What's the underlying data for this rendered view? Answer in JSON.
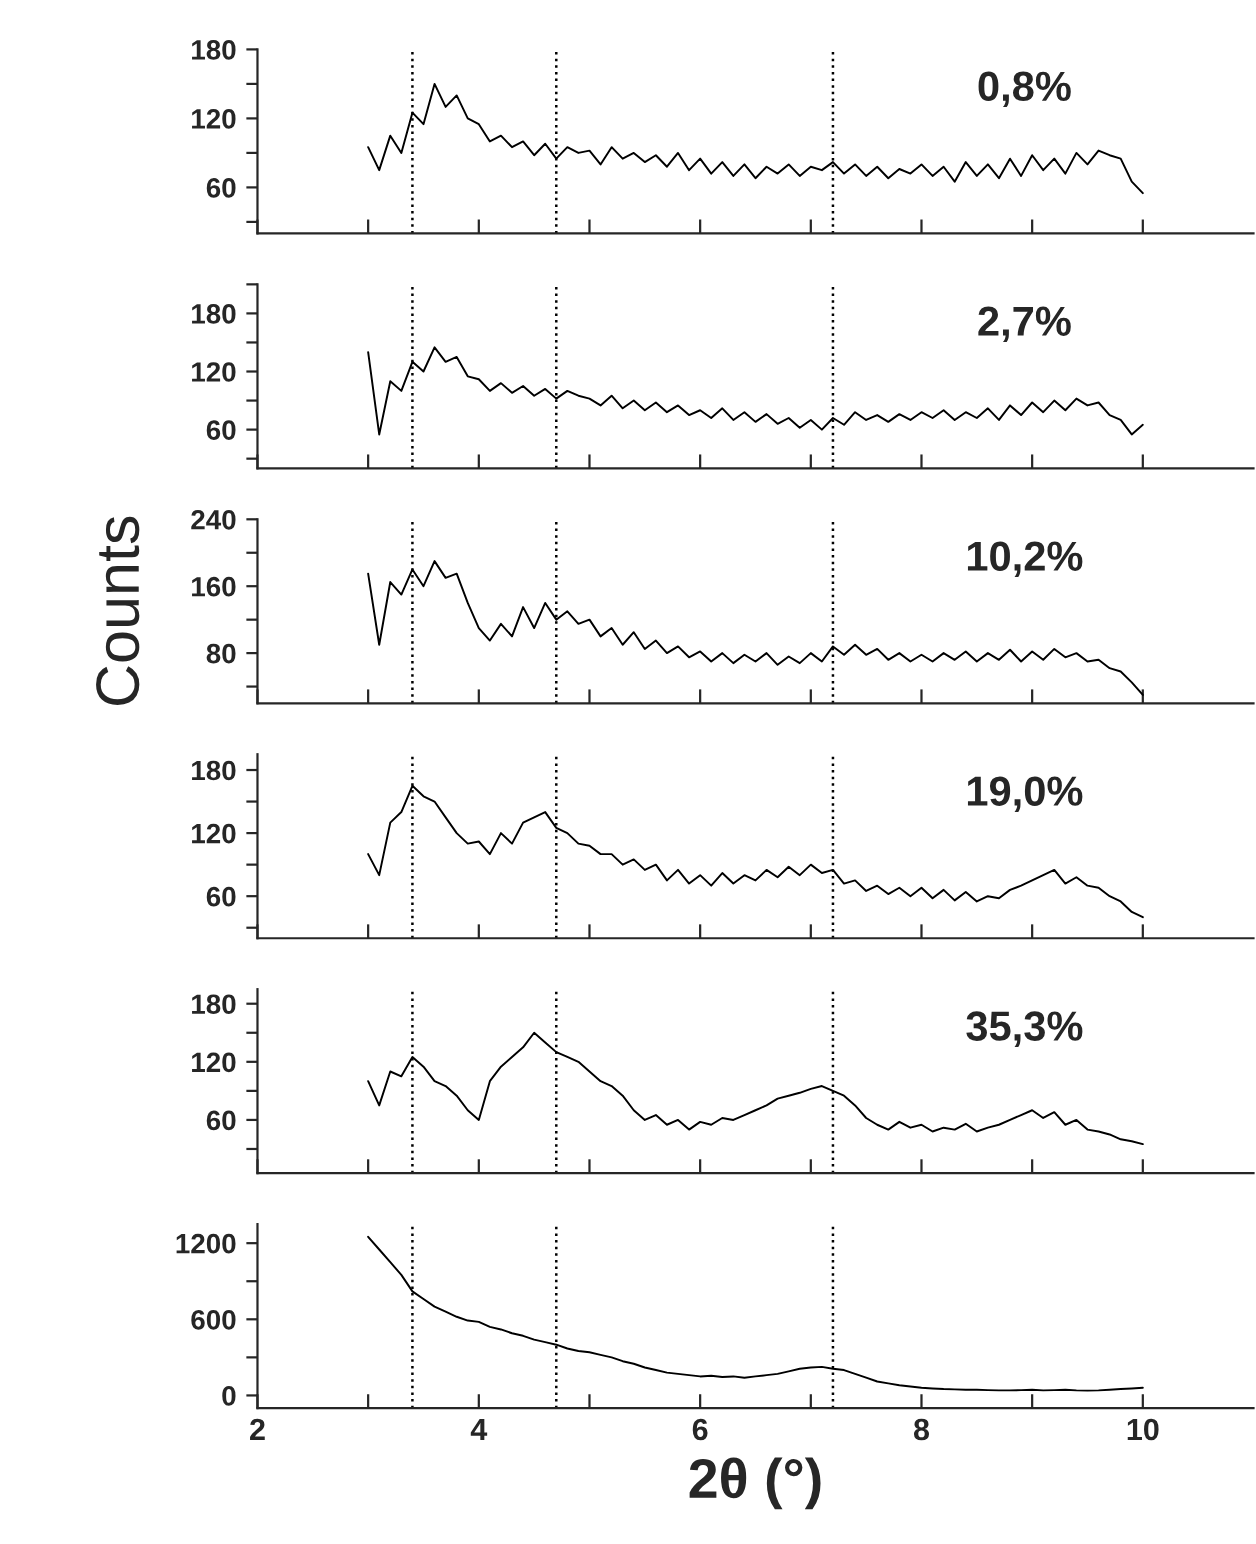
{
  "chart_data": [
    {
      "type": "line",
      "annotations": [
        "0,8%"
      ],
      "xlim": [
        2,
        11
      ],
      "xticks": [
        2,
        {
          "value": 3,
          "label": null
        },
        4,
        {
          "value": 5,
          "label": null
        },
        6,
        {
          "value": 7,
          "label": null
        },
        8,
        {
          "value": 9,
          "label": null
        },
        10
      ],
      "ylim": [
        20,
        180
      ],
      "yticks": [
        {
          "value": 30,
          "label": null
        },
        60,
        {
          "value": 90,
          "label": null
        },
        120,
        {
          "value": 150,
          "label": null
        },
        180
      ],
      "tick_labels": "y",
      "ref_lines": [
        {
          "axis": "x",
          "value": 3.4,
          "color": "#000000",
          "line_style": "dotted"
        },
        {
          "axis": "x",
          "value": 4.7,
          "color": "#000000",
          "line_style": "dotted"
        },
        {
          "axis": "x",
          "value": 7.2,
          "color": "#000000",
          "line_style": "dotted"
        }
      ],
      "x": [
        3.0,
        3.1,
        3.2,
        3.3,
        3.4,
        3.5,
        3.6,
        3.7,
        3.8,
        3.9,
        4.0,
        4.1,
        4.2,
        4.3,
        4.4,
        4.5,
        4.6,
        4.7,
        4.8,
        4.9,
        5.0,
        5.1,
        5.2,
        5.3,
        5.4,
        5.5,
        5.6,
        5.7,
        5.8,
        5.9,
        6.0,
        6.1,
        6.2,
        6.3,
        6.4,
        6.5,
        6.6,
        6.7,
        6.8,
        6.9,
        7.0,
        7.1,
        7.2,
        7.3,
        7.4,
        7.5,
        7.6,
        7.7,
        7.8,
        7.9,
        8.0,
        8.1,
        8.2,
        8.3,
        8.4,
        8.5,
        8.6,
        8.7,
        8.8,
        8.9,
        9.0,
        9.1,
        9.2,
        9.3,
        9.4,
        9.5,
        9.6,
        9.7,
        9.8,
        9.9,
        10.0
      ],
      "series": [
        {
          "color": "#000000",
          "values": [
            95,
            75,
            105,
            90,
            125,
            115,
            150,
            130,
            140,
            120,
            115,
            100,
            105,
            95,
            100,
            88,
            98,
            85,
            95,
            90,
            92,
            80,
            95,
            85,
            90,
            82,
            88,
            78,
            90,
            75,
            85,
            72,
            82,
            70,
            80,
            68,
            78,
            72,
            80,
            70,
            78,
            75,
            82,
            72,
            80,
            70,
            78,
            68,
            76,
            72,
            80,
            70,
            78,
            65,
            82,
            70,
            80,
            68,
            85,
            70,
            88,
            75,
            85,
            72,
            90,
            80,
            92,
            88,
            85,
            65,
            55
          ]
        }
      ]
    },
    {
      "type": "line",
      "annotations": [
        "2,7%"
      ],
      "xlim": [
        2,
        11
      ],
      "xticks": [
        2,
        {
          "value": 3,
          "label": null
        },
        4,
        {
          "value": 5,
          "label": null
        },
        6,
        {
          "value": 7,
          "label": null
        },
        8,
        {
          "value": 9,
          "label": null
        },
        10
      ],
      "ylim": [
        20,
        210
      ],
      "yticks": [
        {
          "value": 30,
          "label": null
        },
        60,
        {
          "value": 90,
          "label": null
        },
        120,
        {
          "value": 150,
          "label": null
        },
        180,
        {
          "value": 210,
          "label": null
        }
      ],
      "tick_labels": "y",
      "ref_lines": [
        {
          "axis": "x",
          "value": 3.4,
          "color": "#000000",
          "line_style": "dotted"
        },
        {
          "axis": "x",
          "value": 4.7,
          "color": "#000000",
          "line_style": "dotted"
        },
        {
          "axis": "x",
          "value": 7.2,
          "color": "#000000",
          "line_style": "dotted"
        }
      ],
      "x": [
        3.0,
        3.1,
        3.2,
        3.3,
        3.4,
        3.5,
        3.6,
        3.7,
        3.8,
        3.9,
        4.0,
        4.1,
        4.2,
        4.3,
        4.4,
        4.5,
        4.6,
        4.7,
        4.8,
        4.9,
        5.0,
        5.1,
        5.2,
        5.3,
        5.4,
        5.5,
        5.6,
        5.7,
        5.8,
        5.9,
        6.0,
        6.1,
        6.2,
        6.3,
        6.4,
        6.5,
        6.6,
        6.7,
        6.8,
        6.9,
        7.0,
        7.1,
        7.2,
        7.3,
        7.4,
        7.5,
        7.6,
        7.7,
        7.8,
        7.9,
        8.0,
        8.1,
        8.2,
        8.3,
        8.4,
        8.5,
        8.6,
        8.7,
        8.8,
        8.9,
        9.0,
        9.1,
        9.2,
        9.3,
        9.4,
        9.5,
        9.6,
        9.7,
        9.8,
        9.9,
        10.0
      ],
      "series": [
        {
          "color": "#000000",
          "values": [
            140,
            55,
            110,
            100,
            130,
            120,
            145,
            130,
            135,
            115,
            112,
            100,
            108,
            98,
            105,
            95,
            102,
            92,
            100,
            95,
            92,
            85,
            95,
            82,
            90,
            80,
            88,
            78,
            85,
            75,
            80,
            72,
            82,
            70,
            78,
            68,
            76,
            66,
            72,
            62,
            70,
            60,
            72,
            65,
            78,
            70,
            75,
            68,
            76,
            70,
            78,
            72,
            80,
            70,
            78,
            72,
            82,
            70,
            85,
            75,
            88,
            78,
            90,
            80,
            92,
            85,
            88,
            75,
            70,
            55,
            65
          ]
        }
      ]
    },
    {
      "type": "line",
      "annotations": [
        "10,2%"
      ],
      "ylabel": "Counts",
      "xlim": [
        2,
        11
      ],
      "xticks": [
        2,
        {
          "value": 3,
          "label": null
        },
        4,
        {
          "value": 5,
          "label": null
        },
        6,
        {
          "value": 7,
          "label": null
        },
        8,
        {
          "value": 9,
          "label": null
        },
        10
      ],
      "ylim": [
        20,
        240
      ],
      "yticks": [
        {
          "value": 40,
          "label": null
        },
        80,
        {
          "value": 120,
          "label": null
        },
        160,
        {
          "value": 200,
          "label": null
        },
        240
      ],
      "tick_labels": "y",
      "ref_lines": [
        {
          "axis": "x",
          "value": 3.4,
          "color": "#000000",
          "line_style": "dotted"
        },
        {
          "axis": "x",
          "value": 4.7,
          "color": "#000000",
          "line_style": "dotted"
        },
        {
          "axis": "x",
          "value": 7.2,
          "color": "#000000",
          "line_style": "dotted"
        }
      ],
      "x": [
        3.0,
        3.1,
        3.2,
        3.3,
        3.4,
        3.5,
        3.6,
        3.7,
        3.8,
        3.9,
        4.0,
        4.1,
        4.2,
        4.3,
        4.4,
        4.5,
        4.6,
        4.7,
        4.8,
        4.9,
        5.0,
        5.1,
        5.2,
        5.3,
        5.4,
        5.5,
        5.6,
        5.7,
        5.8,
        5.9,
        6.0,
        6.1,
        6.2,
        6.3,
        6.4,
        6.5,
        6.6,
        6.7,
        6.8,
        6.9,
        7.0,
        7.1,
        7.2,
        7.3,
        7.4,
        7.5,
        7.6,
        7.7,
        7.8,
        7.9,
        8.0,
        8.1,
        8.2,
        8.3,
        8.4,
        8.5,
        8.6,
        8.7,
        8.8,
        8.9,
        9.0,
        9.1,
        9.2,
        9.3,
        9.4,
        9.5,
        9.6,
        9.7,
        9.8,
        9.9,
        10.0
      ],
      "series": [
        {
          "color": "#000000",
          "values": [
            175,
            90,
            165,
            150,
            180,
            160,
            190,
            170,
            175,
            140,
            110,
            95,
            115,
            100,
            135,
            110,
            140,
            120,
            130,
            115,
            120,
            100,
            110,
            90,
            105,
            85,
            95,
            80,
            88,
            75,
            82,
            70,
            80,
            68,
            78,
            70,
            80,
            66,
            76,
            68,
            80,
            70,
            88,
            78,
            90,
            78,
            85,
            72,
            80,
            70,
            78,
            70,
            80,
            72,
            82,
            70,
            80,
            72,
            84,
            70,
            82,
            72,
            85,
            75,
            80,
            70,
            72,
            62,
            58,
            45,
            30
          ]
        }
      ]
    },
    {
      "type": "line",
      "annotations": [
        "19,0%"
      ],
      "xlim": [
        2,
        11
      ],
      "xticks": [
        2,
        {
          "value": 3,
          "label": null
        },
        4,
        {
          "value": 5,
          "label": null
        },
        6,
        {
          "value": 7,
          "label": null
        },
        8,
        {
          "value": 9,
          "label": null
        },
        10
      ],
      "ylim": [
        20,
        195
      ],
      "yticks": [
        {
          "value": 30,
          "label": null
        },
        60,
        {
          "value": 90,
          "label": null
        },
        120,
        {
          "value": 150,
          "label": null
        },
        180
      ],
      "tick_labels": "y",
      "ref_lines": [
        {
          "axis": "x",
          "value": 3.4,
          "color": "#000000",
          "line_style": "dotted"
        },
        {
          "axis": "x",
          "value": 4.7,
          "color": "#000000",
          "line_style": "dotted"
        },
        {
          "axis": "x",
          "value": 7.2,
          "color": "#000000",
          "line_style": "dotted"
        }
      ],
      "x": [
        3.0,
        3.1,
        3.2,
        3.3,
        3.4,
        3.5,
        3.6,
        3.7,
        3.8,
        3.9,
        4.0,
        4.1,
        4.2,
        4.3,
        4.4,
        4.5,
        4.6,
        4.7,
        4.8,
        4.9,
        5.0,
        5.1,
        5.2,
        5.3,
        5.4,
        5.5,
        5.6,
        5.7,
        5.8,
        5.9,
        6.0,
        6.1,
        6.2,
        6.3,
        6.4,
        6.5,
        6.6,
        6.7,
        6.8,
        6.9,
        7.0,
        7.1,
        7.2,
        7.3,
        7.4,
        7.5,
        7.6,
        7.7,
        7.8,
        7.9,
        8.0,
        8.1,
        8.2,
        8.3,
        8.4,
        8.5,
        8.6,
        8.7,
        8.8,
        8.9,
        9.0,
        9.1,
        9.2,
        9.3,
        9.4,
        9.5,
        9.6,
        9.7,
        9.8,
        9.9,
        10.0
      ],
      "series": [
        {
          "color": "#000000",
          "values": [
            100,
            80,
            130,
            140,
            165,
            155,
            150,
            135,
            120,
            110,
            112,
            100,
            120,
            110,
            130,
            135,
            140,
            125,
            120,
            110,
            108,
            100,
            100,
            90,
            95,
            85,
            90,
            75,
            85,
            72,
            80,
            70,
            82,
            72,
            80,
            75,
            85,
            78,
            88,
            80,
            90,
            82,
            85,
            72,
            75,
            65,
            70,
            62,
            68,
            60,
            68,
            58,
            66,
            56,
            64,
            55,
            60,
            58,
            66,
            70,
            75,
            80,
            85,
            72,
            78,
            70,
            68,
            60,
            55,
            45,
            40
          ]
        }
      ]
    },
    {
      "type": "line",
      "annotations": [
        "35,3%"
      ],
      "xlim": [
        2,
        11
      ],
      "xticks": [
        2,
        {
          "value": 3,
          "label": null
        },
        4,
        {
          "value": 5,
          "label": null
        },
        6,
        {
          "value": 7,
          "label": null
        },
        8,
        {
          "value": 9,
          "label": null
        },
        10
      ],
      "ylim": [
        5,
        195
      ],
      "yticks": [
        {
          "value": 30,
          "label": null
        },
        60,
        {
          "value": 90,
          "label": null
        },
        120,
        {
          "value": 150,
          "label": null
        },
        180
      ],
      "tick_labels": "y",
      "ref_lines": [
        {
          "axis": "x",
          "value": 3.4,
          "color": "#000000",
          "line_style": "dotted"
        },
        {
          "axis": "x",
          "value": 4.7,
          "color": "#000000",
          "line_style": "dotted"
        },
        {
          "axis": "x",
          "value": 7.2,
          "color": "#000000",
          "line_style": "dotted"
        }
      ],
      "x": [
        3.0,
        3.1,
        3.2,
        3.3,
        3.4,
        3.5,
        3.6,
        3.7,
        3.8,
        3.9,
        4.0,
        4.1,
        4.2,
        4.3,
        4.4,
        4.5,
        4.6,
        4.7,
        4.8,
        4.9,
        5.0,
        5.1,
        5.2,
        5.3,
        5.4,
        5.5,
        5.6,
        5.7,
        5.8,
        5.9,
        6.0,
        6.1,
        6.2,
        6.3,
        6.4,
        6.5,
        6.6,
        6.7,
        6.8,
        6.9,
        7.0,
        7.1,
        7.2,
        7.3,
        7.4,
        7.5,
        7.6,
        7.7,
        7.8,
        7.9,
        8.0,
        8.1,
        8.2,
        8.3,
        8.4,
        8.5,
        8.6,
        8.7,
        8.8,
        8.9,
        9.0,
        9.1,
        9.2,
        9.3,
        9.4,
        9.5,
        9.6,
        9.7,
        9.8,
        9.9,
        10.0
      ],
      "series": [
        {
          "color": "#000000",
          "values": [
            100,
            75,
            110,
            105,
            125,
            115,
            100,
            95,
            85,
            70,
            60,
            100,
            115,
            125,
            135,
            150,
            140,
            130,
            125,
            120,
            110,
            100,
            95,
            85,
            70,
            60,
            65,
            55,
            60,
            50,
            58,
            55,
            62,
            60,
            65,
            70,
            75,
            82,
            85,
            88,
            92,
            95,
            90,
            85,
            75,
            62,
            55,
            50,
            58,
            52,
            55,
            48,
            52,
            50,
            56,
            48,
            52,
            55,
            60,
            65,
            70,
            62,
            68,
            55,
            60,
            50,
            48,
            45,
            40,
            38,
            35
          ]
        }
      ]
    },
    {
      "type": "line",
      "xlabel": "2θ (°)",
      "xlim": [
        2,
        11
      ],
      "xticks": [
        2,
        {
          "value": 3,
          "label": null
        },
        4,
        {
          "value": 5,
          "label": null
        },
        6,
        {
          "value": 7,
          "label": null
        },
        8,
        {
          "value": 9,
          "label": null
        },
        10
      ],
      "ylim": [
        -100,
        1350
      ],
      "yticks": [
        0,
        {
          "value": 300,
          "label": null
        },
        600,
        {
          "value": 900,
          "label": null
        },
        1200
      ],
      "ref_lines": [
        {
          "axis": "x",
          "value": 3.4,
          "color": "#000000",
          "line_style": "dotted"
        },
        {
          "axis": "x",
          "value": 4.7,
          "color": "#000000",
          "line_style": "dotted"
        },
        {
          "axis": "x",
          "value": 7.2,
          "color": "#000000",
          "line_style": "dotted"
        }
      ],
      "x": [
        3.0,
        3.1,
        3.2,
        3.3,
        3.4,
        3.5,
        3.6,
        3.7,
        3.8,
        3.9,
        4.0,
        4.1,
        4.2,
        4.3,
        4.4,
        4.5,
        4.6,
        4.7,
        4.8,
        4.9,
        5.0,
        5.1,
        5.2,
        5.3,
        5.4,
        5.5,
        5.6,
        5.7,
        5.8,
        5.9,
        6.0,
        6.1,
        6.2,
        6.3,
        6.4,
        6.5,
        6.6,
        6.7,
        6.8,
        6.9,
        7.0,
        7.1,
        7.2,
        7.3,
        7.4,
        7.5,
        7.6,
        7.7,
        7.8,
        7.9,
        8.0,
        8.1,
        8.2,
        8.3,
        8.4,
        8.5,
        8.6,
        8.7,
        8.8,
        8.9,
        9.0,
        9.1,
        9.2,
        9.3,
        9.4,
        9.5,
        9.6,
        9.7,
        9.8,
        9.9,
        10.0
      ],
      "series": [
        {
          "color": "#000000",
          "values": [
            1250,
            1150,
            1050,
            950,
            820,
            760,
            700,
            660,
            620,
            590,
            580,
            540,
            520,
            490,
            470,
            440,
            420,
            400,
            370,
            350,
            340,
            320,
            300,
            270,
            250,
            220,
            200,
            180,
            170,
            160,
            150,
            155,
            145,
            150,
            140,
            150,
            160,
            170,
            190,
            210,
            220,
            225,
            210,
            200,
            170,
            140,
            110,
            95,
            80,
            70,
            60,
            55,
            50,
            48,
            45,
            45,
            42,
            40,
            40,
            42,
            45,
            40,
            42,
            45,
            40,
            38,
            40,
            45,
            50,
            55,
            60
          ]
        }
      ]
    }
  ]
}
